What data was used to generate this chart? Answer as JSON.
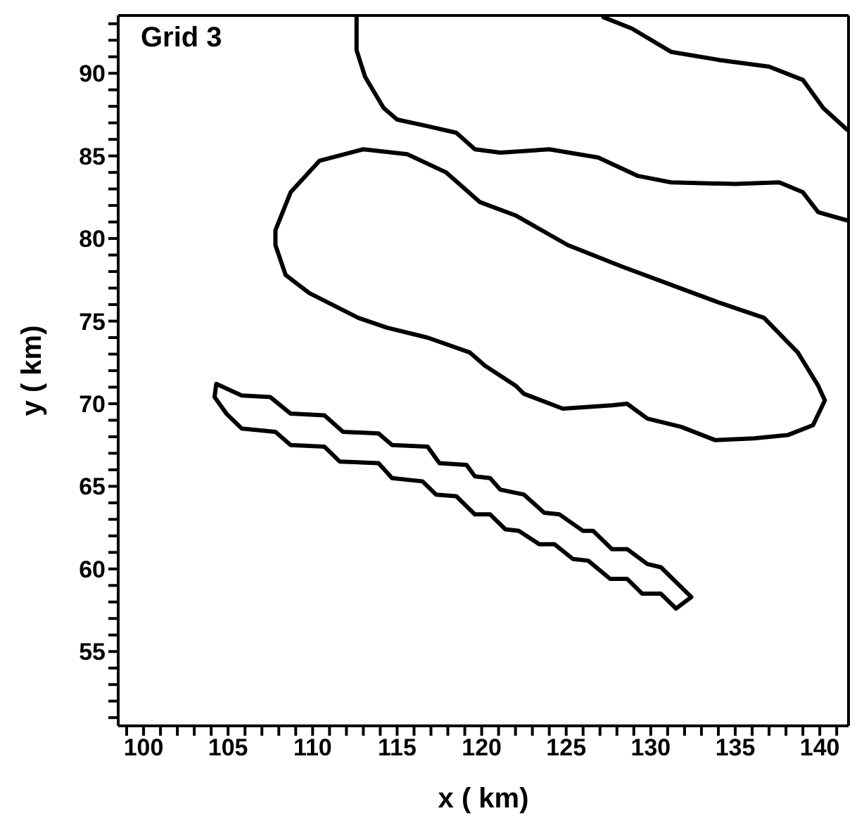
{
  "chart_data": {
    "type": "line",
    "xlabel": "x ( km)",
    "ylabel": "y ( km)",
    "annotations": [
      "Grid 3"
    ],
    "xlim": [
      98.5,
      141.7
    ],
    "ylim": [
      50.5,
      93.5
    ],
    "xticks": [
      {
        "value": 99,
        "label": null
      },
      100,
      {
        "value": 101,
        "label": null
      },
      {
        "value": 102,
        "label": null
      },
      {
        "value": 103,
        "label": null
      },
      {
        "value": 104,
        "label": null
      },
      105,
      {
        "value": 106,
        "label": null
      },
      {
        "value": 107,
        "label": null
      },
      {
        "value": 108,
        "label": null
      },
      {
        "value": 109,
        "label": null
      },
      110,
      {
        "value": 111,
        "label": null
      },
      {
        "value": 112,
        "label": null
      },
      {
        "value": 113,
        "label": null
      },
      {
        "value": 114,
        "label": null
      },
      115,
      {
        "value": 116,
        "label": null
      },
      {
        "value": 117,
        "label": null
      },
      {
        "value": 118,
        "label": null
      },
      {
        "value": 119,
        "label": null
      },
      120,
      {
        "value": 121,
        "label": null
      },
      {
        "value": 122,
        "label": null
      },
      {
        "value": 123,
        "label": null
      },
      {
        "value": 124,
        "label": null
      },
      125,
      {
        "value": 126,
        "label": null
      },
      {
        "value": 127,
        "label": null
      },
      {
        "value": 128,
        "label": null
      },
      {
        "value": 129,
        "label": null
      },
      130,
      {
        "value": 131,
        "label": null
      },
      {
        "value": 132,
        "label": null
      },
      {
        "value": 133,
        "label": null
      },
      {
        "value": 134,
        "label": null
      },
      135,
      {
        "value": 136,
        "label": null
      },
      {
        "value": 137,
        "label": null
      },
      {
        "value": 138,
        "label": null
      },
      {
        "value": 139,
        "label": null
      },
      140,
      {
        "value": 141,
        "label": null
      }
    ],
    "yticks": [
      {
        "value": 51,
        "label": null
      },
      {
        "value": 52,
        "label": null
      },
      {
        "value": 53,
        "label": null
      },
      {
        "value": 54,
        "label": null
      },
      55,
      {
        "value": 56,
        "label": null
      },
      {
        "value": 57,
        "label": null
      },
      {
        "value": 58,
        "label": null
      },
      {
        "value": 59,
        "label": null
      },
      60,
      {
        "value": 61,
        "label": null
      },
      {
        "value": 62,
        "label": null
      },
      {
        "value": 63,
        "label": null
      },
      {
        "value": 64,
        "label": null
      },
      65,
      {
        "value": 66,
        "label": null
      },
      {
        "value": 67,
        "label": null
      },
      {
        "value": 68,
        "label": null
      },
      {
        "value": 69,
        "label": null
      },
      70,
      {
        "value": 71,
        "label": null
      },
      {
        "value": 72,
        "label": null
      },
      {
        "value": 73,
        "label": null
      },
      {
        "value": 74,
        "label": null
      },
      75,
      {
        "value": 76,
        "label": null
      },
      {
        "value": 77,
        "label": null
      },
      {
        "value": 78,
        "label": null
      },
      {
        "value": 79,
        "label": null
      },
      80,
      {
        "value": 81,
        "label": null
      },
      {
        "value": 82,
        "label": null
      },
      {
        "value": 83,
        "label": null
      },
      {
        "value": 84,
        "label": null
      },
      85,
      {
        "value": 86,
        "label": null
      },
      {
        "value": 87,
        "label": null
      },
      {
        "value": 88,
        "label": null
      },
      {
        "value": 89,
        "label": null
      },
      90,
      {
        "value": 91,
        "label": null
      },
      {
        "value": 92,
        "label": null
      },
      {
        "value": 93,
        "label": null
      }
    ],
    "series": [
      {
        "color": "#000000",
        "x": [
          112.6,
          112.6,
          113.1,
          114.2,
          115.0,
          116.8,
          118.5,
          119.6,
          121.1,
          124.0,
          126.9,
          129.2,
          131.2,
          135.0,
          137.6,
          139.0,
          139.9,
          141.6
        ],
        "values": [
          93.4,
          91.4,
          89.8,
          87.9,
          87.2,
          86.8,
          86.4,
          85.4,
          85.2,
          85.4,
          84.9,
          83.8,
          83.4,
          83.3,
          83.4,
          82.8,
          81.6,
          81.1
        ]
      },
      {
        "color": "#000000",
        "x": [
          127.2,
          128.9,
          131.2,
          134.1,
          137.0,
          139.0,
          140.2,
          141.6
        ],
        "values": [
          93.4,
          92.7,
          91.3,
          90.8,
          90.4,
          89.6,
          87.9,
          86.6
        ]
      }
    ]
  }
}
